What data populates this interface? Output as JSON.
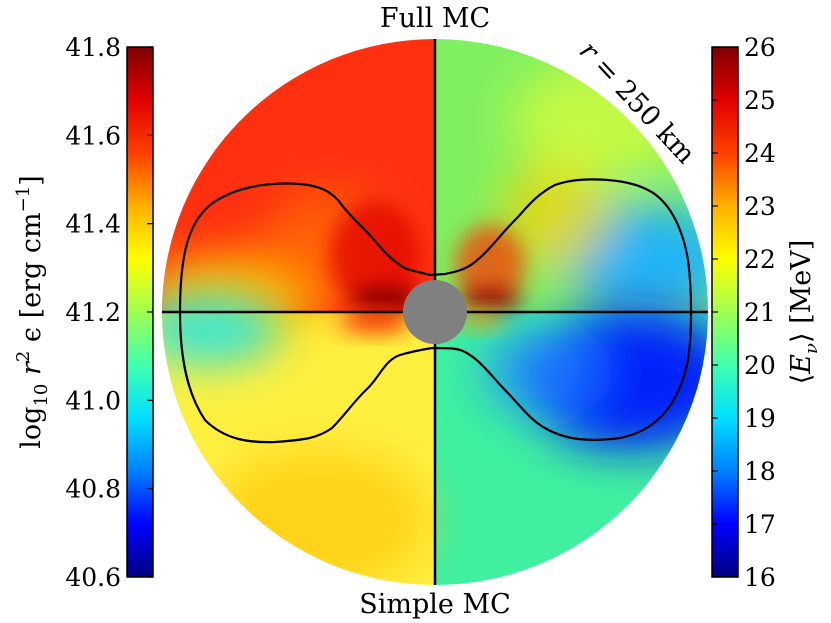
{
  "chart_data": {
    "type": "heatmap",
    "title_top": "Full MC",
    "title_bottom": "Simple MC",
    "annotation": {
      "var": "r",
      "eq": " = 250 km"
    },
    "left_colorbar": {
      "label_prefix": "log",
      "label_sub": "10",
      "label_var": " r",
      "label_sup": "2",
      "label_mid": " ϵ [erg cm",
      "label_sup2": "−1",
      "label_end": "]",
      "range": [
        40.6,
        41.8
      ],
      "ticks": [
        "41.8",
        "41.6",
        "41.4",
        "41.2",
        "41.0",
        "40.8",
        "40.6"
      ]
    },
    "right_colorbar": {
      "label_open": "⟨",
      "label_var": "E",
      "label_sub": "ν",
      "label_close": "⟩ [MeV]",
      "range": [
        16,
        26
      ],
      "ticks": [
        "26",
        "25",
        "24",
        "23",
        "22",
        "21",
        "20",
        "19",
        "18",
        "17",
        "16"
      ]
    },
    "colors": {
      "colormap": [
        "#000080",
        "#0000ff",
        "#0080ff",
        "#00e0ff",
        "#40ffb0",
        "#a0ff50",
        "#ffff00",
        "#ffb000",
        "#ff4000",
        "#e00000",
        "#800000"
      ],
      "upper_left": "#ff3010",
      "upper_right": "#80f060",
      "lower_left": "#fff040",
      "lower_right": "#40f0a0",
      "core": "#808080",
      "contour": "#000000"
    }
  }
}
